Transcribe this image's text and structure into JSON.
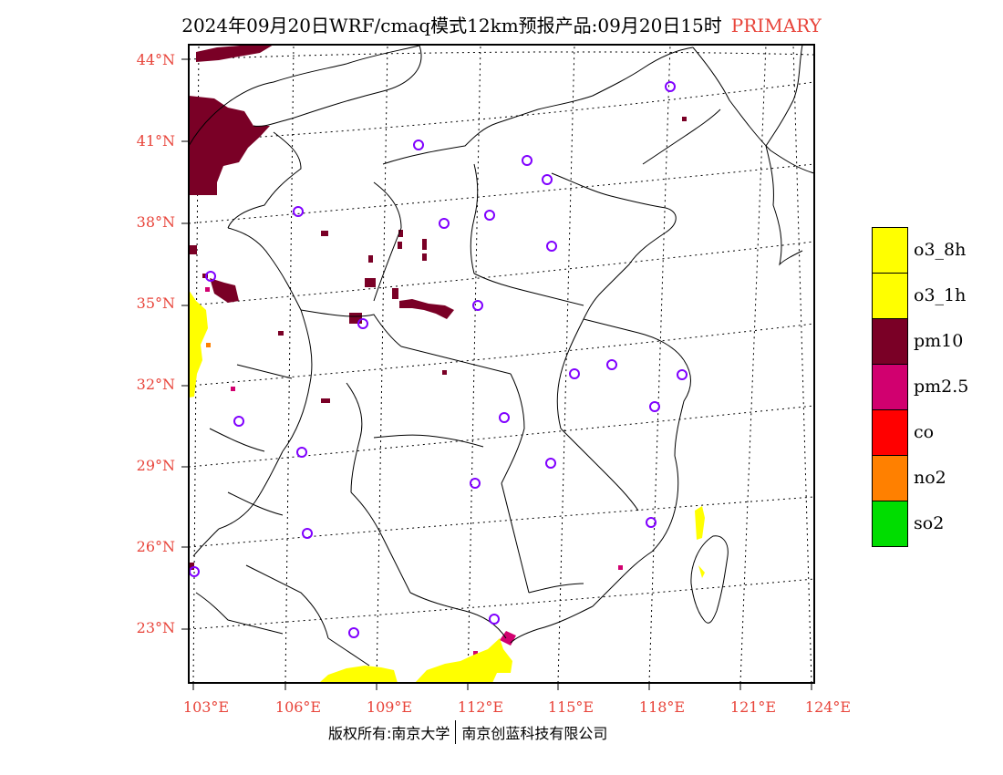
{
  "title": {
    "main": "2024年09月20日WRF/cmaq模式12km预报产品:09月20日15时",
    "tag": "PRIMARY"
  },
  "axes": {
    "lat_labels": [
      "44°N",
      "41°N",
      "38°N",
      "35°N",
      "32°N",
      "29°N",
      "26°N",
      "23°N"
    ],
    "lon_labels": [
      "103°E",
      "106°E",
      "109°E",
      "112°E",
      "115°E",
      "118°E",
      "121°E",
      "124°E"
    ]
  },
  "legend": {
    "items": [
      {
        "label": "o3_8h",
        "color": "#ffff00"
      },
      {
        "label": "o3_1h",
        "color": "#ffff00"
      },
      {
        "label": "pm10",
        "color": "#7a0026"
      },
      {
        "label": "pm2.5",
        "color": "#d1006f"
      },
      {
        "label": "co",
        "color": "#ff0000"
      },
      {
        "label": "no2",
        "color": "#ff8000"
      },
      {
        "label": "so2",
        "color": "#00dd00"
      }
    ]
  },
  "colors": {
    "label_red": "#e8443a",
    "station_circle": "#8000ff"
  },
  "copyright": {
    "left": "版权所有:南京大学",
    "right": "南京创蓝科技有限公司"
  }
}
